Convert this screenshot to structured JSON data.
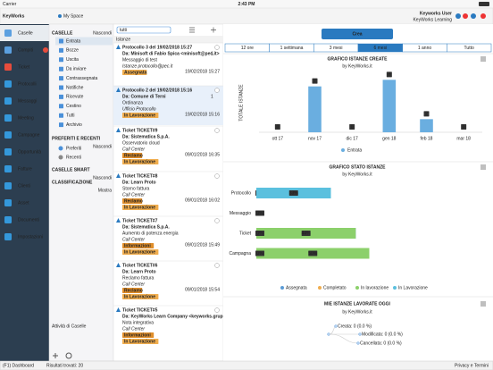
{
  "status_bar": {
    "carrier": "Carrier",
    "time": "2:43 PM"
  },
  "header": {
    "logo": "KeyWorks",
    "space": "My Space",
    "user": "Keyworks User",
    "company": "KeyWorks Learning"
  },
  "nav": [
    "Caselle",
    "Compiti",
    "Ticket",
    "Protocolli",
    "Messaggi",
    "Meeting",
    "Campagne",
    "Opportunità",
    "Fatture",
    "Clienti",
    "Asset",
    "Documenti",
    "Impostazioni"
  ],
  "folders": {
    "caselle_title": "CASELLE",
    "hide": "Nascondi",
    "items": [
      "Entrata",
      "Bozze",
      "Uscita",
      "Da inviare",
      "Contrassegnata",
      "Notifiche",
      "Ricevute",
      "Cestino",
      "Tutti",
      "Archivio"
    ],
    "preferiti_title": "PREFERITI E RECENTI",
    "preferiti": [
      "Preferiti",
      "Recenti"
    ],
    "smart_title": "CASELLE SMART",
    "classificazione_title": "CLASSIFICAZIONE",
    "show": "Mostra",
    "activity": "Attività di Caselle"
  },
  "list": {
    "search": "tutti",
    "header": "Istanze",
    "items": [
      {
        "title": "Protocollo 3 del 19/02/2018 15:27",
        "from": "Da: Minisoft di Fabio Spica <minisoft@pec.it>",
        "subject": "Messaggio di test",
        "source": "Istanze protocollo@pec.it",
        "date": "19/02/2018 15:27",
        "tags": [
          "Assegnata"
        ],
        "attachments": 1
      },
      {
        "title": "Protocollo 2 del 19/02/2018 15:16",
        "from": "Da: Comune di Terni",
        "subject": "Ordinanza",
        "source": "Ufficio Protocollo",
        "date": "19/02/2018 15:16",
        "tags": [
          "In Lavorazione"
        ],
        "attachments": 1
      },
      {
        "title": "Ticket TICKET#9",
        "from": "Da: Sistematica S.p.A.",
        "subject": "Osservatorio cloud",
        "source": "Call Center",
        "date": "09/01/2018 16:35",
        "tags": [
          "Reclamo",
          "In Lavorazione"
        ]
      },
      {
        "title": "Ticket TICKET#8",
        "from": "Da: Learn Proto",
        "subject": "Storno fattura",
        "source": "Call Center",
        "date": "09/01/2018 16:02",
        "tags": [
          "Reclamo",
          "In Lavorazione"
        ]
      },
      {
        "title": "Ticket TICKET#7",
        "from": "Da: Sistematica S.p.A.",
        "subject": "Aumento di potenza energia",
        "source": "Call Center",
        "date": "09/01/2018 15:49",
        "tags": [
          "Informazioni",
          "In Lavorazione"
        ]
      },
      {
        "title": "Ticket TICKET#6",
        "from": "Da: Learn Proto",
        "subject": "Reclamo fattura",
        "source": "Call Center",
        "date": "09/01/2018 15:54",
        "tags": [
          "Reclamo",
          "In Lavorazione"
        ]
      },
      {
        "title": "Ticket TICKET#5",
        "from": "Da: KeyWorks Learn Company <keyworks.gruppoistematica@gmail.co m>",
        "subject": "Nota integrativa",
        "source": "Call Center",
        "tags": [
          "Informazioni",
          "In Lavorazione"
        ]
      }
    ]
  },
  "create": "Crea",
  "ranges": [
    "12 ore",
    "1 settimana",
    "3 mesi",
    "6 mesi",
    "1 anno",
    "Tutto"
  ],
  "active_range": "6 mesi",
  "chart_data": [
    {
      "type": "bar",
      "title": "GRAFICO ISTANZE CREATE",
      "subtitle": "by KeyWorks.it",
      "y_label": "TOTALE ISTANZE",
      "categories": [
        "ott 17",
        "nov 17",
        "dic 17",
        "gen 18",
        "feb 18",
        "mar 18"
      ],
      "series": [
        {
          "name": "Entrata",
          "color": "#6aaee0",
          "values": [
            0,
            7,
            0,
            8,
            2,
            0
          ]
        }
      ],
      "ylim": [
        0,
        9
      ]
    },
    {
      "type": "stacked-hbar",
      "title": "GRAFICO STATO ISTANZE",
      "subtitle": "by KeyWorks.it",
      "categories": [
        "Protocollo",
        "Messaggio",
        "Ticket",
        "Campagna"
      ],
      "series": [
        {
          "name": "Assegnata",
          "color": "#5b9bd5",
          "values": [
            33,
            0,
            44,
            50
          ],
          "value_labels": [
            "33%",
            "0%",
            "44%",
            "50%"
          ]
        },
        {
          "name": "Completato",
          "color": "#f0ad4e",
          "values": [
            0,
            0,
            11,
            0
          ],
          "value_labels": [
            "0%",
            "0%",
            "11%",
            "0%"
          ]
        },
        {
          "name": "In lavorazione",
          "color": "#8cd06b",
          "values": [
            33,
            0,
            44,
            50
          ],
          "value_labels": [
            "33%",
            "0%",
            "44%",
            "50%"
          ]
        },
        {
          "name": "In Lavorazione",
          "color": "#5bc0de",
          "values": [
            33,
            0,
            0,
            0
          ],
          "value_labels": [
            "33%",
            "0%",
            "0%",
            "0%"
          ]
        }
      ],
      "xlim": [
        0,
        100
      ]
    }
  ],
  "today": {
    "title": "MIE ISTANZE LAVORATE OGGI",
    "subtitle": "by KeyWorks.it",
    "nodes": [
      "Creata: 0 (0.0 %)",
      "Modificata: 0 (0.0 %)",
      "Cancellata: 0 (0.0 %)"
    ]
  },
  "footer": {
    "left": "(F1) Dashboard",
    "results": "Risultati trovati: 20",
    "right": "Privacy e Termini"
  }
}
